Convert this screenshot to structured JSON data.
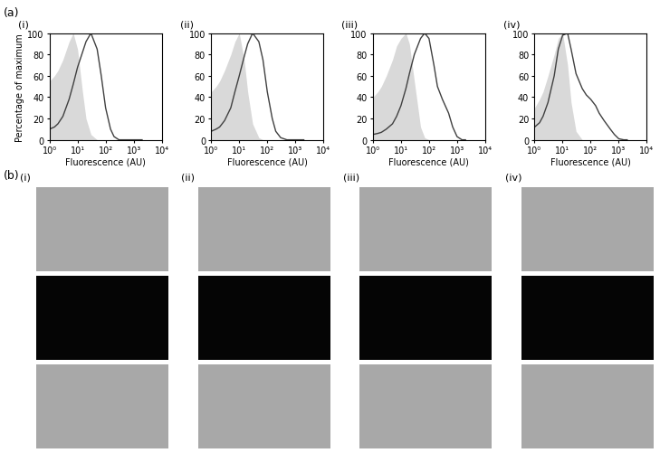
{
  "chart_data": [
    {
      "type": "line",
      "panel": "(i)",
      "xlabel": "Fluorescence (AU)",
      "ylabel": "Percentage of maximum",
      "log": "x",
      "xlim": [
        1,
        10000
      ],
      "xticks": [
        {
          "value": 1,
          "label": "10⁰"
        },
        {
          "value": 10,
          "label": "10¹"
        },
        {
          "value": 100,
          "label": "10²"
        },
        {
          "value": 1000,
          "label": "10³"
        },
        {
          "value": 10000,
          "label": "10⁴"
        }
      ],
      "ylim": [
        0,
        100
      ],
      "yticks": [
        0,
        20,
        40,
        60,
        80,
        100
      ],
      "x": [
        1,
        1.5,
        2,
        3,
        5,
        7,
        10,
        15,
        20,
        30,
        50,
        70,
        100,
        150,
        200,
        300,
        500,
        700,
        1000,
        1500,
        2000
      ],
      "series": [
        {
          "type": "area",
          "color": "#d9d9d9",
          "values": [
            55,
            60,
            65,
            75,
            92,
            100,
            85,
            45,
            20,
            5,
            0,
            0,
            0,
            0,
            0,
            0,
            0,
            0,
            0,
            0,
            0
          ]
        },
        {
          "type": "line",
          "color": "#404040",
          "values": [
            10,
            12,
            15,
            22,
            38,
            52,
            68,
            82,
            92,
            100,
            85,
            60,
            30,
            10,
            3,
            0,
            0,
            0,
            0,
            0,
            0
          ]
        }
      ]
    },
    {
      "type": "line",
      "panel": "(ii)",
      "xlabel": "Fluorescence (AU)",
      "log": "x",
      "xlim": [
        1,
        10000
      ],
      "xticks": [
        {
          "value": 1,
          "label": "10⁰"
        },
        {
          "value": 10,
          "label": "10¹"
        },
        {
          "value": 100,
          "label": "10²"
        },
        {
          "value": 1000,
          "label": "10³"
        },
        {
          "value": 10000,
          "label": "10⁴"
        }
      ],
      "ylim": [
        0,
        100
      ],
      "yticks": [
        0,
        20,
        40,
        60,
        80,
        100
      ],
      "x": [
        1,
        1.5,
        2,
        3,
        5,
        7,
        10,
        15,
        20,
        30,
        50,
        70,
        100,
        150,
        200,
        300,
        500,
        700,
        1000,
        1500,
        2000
      ],
      "series": [
        {
          "type": "area",
          "color": "#d9d9d9",
          "values": [
            45,
            50,
            55,
            65,
            80,
            92,
            100,
            75,
            45,
            15,
            2,
            0,
            0,
            0,
            0,
            0,
            0,
            0,
            0,
            0,
            0
          ]
        },
        {
          "type": "line",
          "color": "#404040",
          "values": [
            8,
            10,
            12,
            18,
            30,
            45,
            60,
            78,
            90,
            100,
            92,
            75,
            45,
            20,
            8,
            2,
            0,
            0,
            0,
            0,
            0
          ]
        }
      ]
    },
    {
      "type": "line",
      "panel": "(iii)",
      "xlabel": "Fluorescence (AU)",
      "log": "x",
      "xlim": [
        1,
        10000
      ],
      "xticks": [
        {
          "value": 1,
          "label": "10⁰"
        },
        {
          "value": 10,
          "label": "10¹"
        },
        {
          "value": 100,
          "label": "10²"
        },
        {
          "value": 1000,
          "label": "10³"
        },
        {
          "value": 10000,
          "label": "10⁴"
        }
      ],
      "ylim": [
        0,
        100
      ],
      "yticks": [
        0,
        20,
        40,
        60,
        80,
        100
      ],
      "x": [
        1,
        1.5,
        2,
        3,
        5,
        7,
        10,
        15,
        20,
        30,
        50,
        70,
        100,
        150,
        200,
        300,
        500,
        700,
        1000,
        1500,
        2000
      ],
      "series": [
        {
          "type": "area",
          "color": "#d9d9d9",
          "values": [
            40,
            45,
            50,
            60,
            75,
            88,
            95,
            100,
            90,
            55,
            12,
            2,
            0,
            0,
            0,
            0,
            0,
            0,
            0,
            0,
            0
          ]
        },
        {
          "type": "line",
          "color": "#404040",
          "values": [
            5,
            6,
            7,
            10,
            15,
            22,
            32,
            48,
            62,
            80,
            95,
            100,
            95,
            70,
            50,
            38,
            25,
            12,
            3,
            0,
            0
          ]
        }
      ]
    },
    {
      "type": "line",
      "panel": "(iv)",
      "xlabel": "Fluorescence (AU)",
      "log": "x",
      "xlim": [
        1,
        10000
      ],
      "xticks": [
        {
          "value": 1,
          "label": "10⁰"
        },
        {
          "value": 10,
          "label": "10¹"
        },
        {
          "value": 100,
          "label": "10²"
        },
        {
          "value": 1000,
          "label": "10³"
        },
        {
          "value": 10000,
          "label": "10⁴"
        }
      ],
      "ylim": [
        0,
        100
      ],
      "yticks": [
        0,
        20,
        40,
        60,
        80,
        100
      ],
      "x": [
        1,
        1.5,
        2,
        3,
        5,
        7,
        10,
        15,
        20,
        30,
        50,
        70,
        100,
        150,
        200,
        300,
        500,
        700,
        1000,
        1500,
        2000
      ],
      "series": [
        {
          "type": "area",
          "color": "#d9d9d9",
          "values": [
            30,
            38,
            45,
            60,
            80,
            95,
            100,
            70,
            35,
            8,
            0,
            0,
            0,
            0,
            0,
            0,
            0,
            0,
            0,
            0,
            0
          ]
        },
        {
          "type": "line",
          "color": "#404040",
          "values": [
            12,
            16,
            22,
            35,
            60,
            85,
            98,
            100,
            85,
            62,
            48,
            42,
            38,
            32,
            25,
            18,
            10,
            5,
            1,
            0,
            0
          ]
        }
      ]
    }
  ],
  "panel_a": {
    "label": "(a)"
  },
  "panel_b": {
    "label": "(b)",
    "columns": [
      "(i)",
      "(ii)",
      "(iii)",
      "(iv)"
    ]
  }
}
